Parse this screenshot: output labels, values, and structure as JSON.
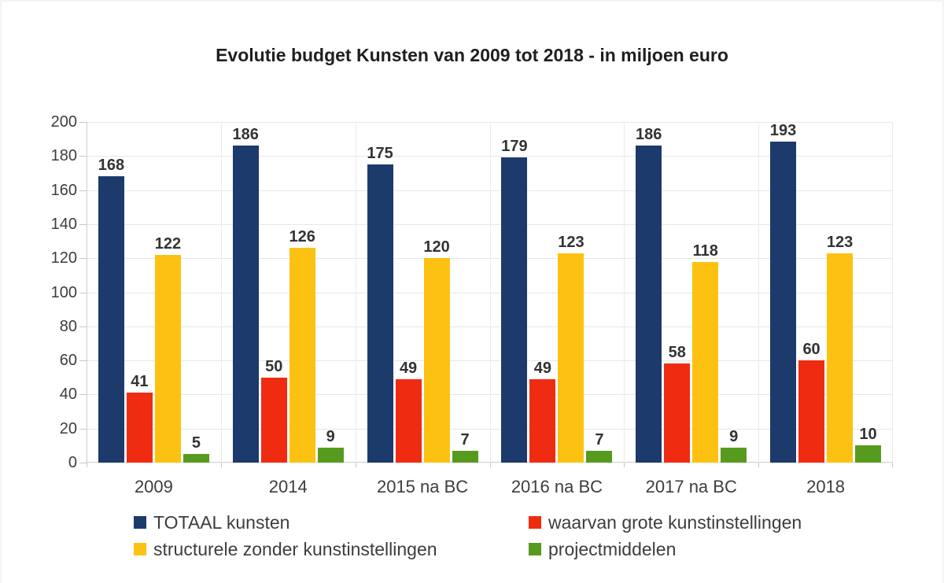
{
  "chart_data": {
    "type": "bar",
    "title": "Evolutie budget Kunsten van 2009 tot 2018 - in miljoen euro",
    "categories": [
      "2009",
      "2014",
      "2015 na BC",
      "2016 na BC",
      "2017 na BC",
      "2018"
    ],
    "series": [
      {
        "name": "TOTAAL kunsten",
        "color": "#1c3a6b",
        "values": [
          168,
          186,
          175,
          179,
          186,
          193
        ]
      },
      {
        "name": "waarvan grote kunstinstellingen",
        "color": "#ef2b12",
        "values": [
          41,
          50,
          49,
          49,
          58,
          60
        ]
      },
      {
        "name": "structurele zonder kunstinstellingen",
        "color": "#fdc112",
        "values": [
          122,
          126,
          120,
          123,
          118,
          123
        ]
      },
      {
        "name": "projectmiddelen",
        "color": "#579b1e",
        "values": [
          5,
          9,
          7,
          7,
          9,
          10
        ]
      }
    ],
    "ylim": [
      0,
      200
    ],
    "yticks": [
      0,
      20,
      40,
      60,
      80,
      100,
      120,
      140,
      160,
      180,
      200
    ],
    "xlabel": "",
    "ylabel": "",
    "grid": true,
    "legend_position": "bottom",
    "data_labels": true
  },
  "colors": {
    "background": "#ffffff",
    "gridline": "#e7e7e7",
    "axis_line": "#cfcfcf",
    "text": "#3d3d3d"
  }
}
